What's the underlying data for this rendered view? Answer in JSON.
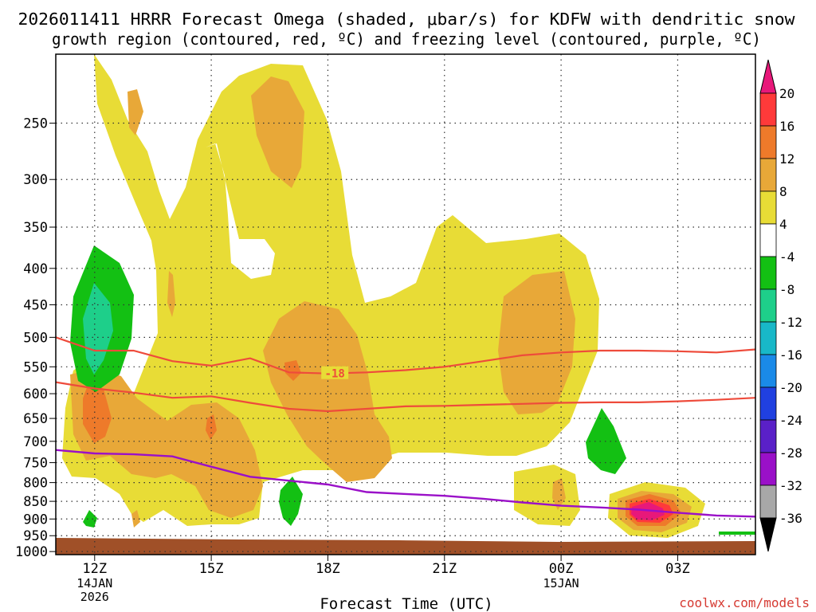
{
  "chart_data": {
    "type": "heatmap",
    "title_line1": "2026011411 HRRR Forecast Omega (shaded, μbar/s) for KDFW with dendritic snow",
    "title_line2": "growth region (contoured, red, ºC) and freezing level (contoured, purple, ºC)",
    "xlabel": "Forecast Time (UTC)",
    "credit": "coolwx.com/models",
    "x_range_hours": [
      -1.0,
      17.0
    ],
    "y_range_hpa": [
      200,
      1010
    ],
    "x_ticks": [
      {
        "hour": 0,
        "label": "12Z",
        "sub1": "14JAN",
        "sub2": "2026"
      },
      {
        "hour": 3,
        "label": "15Z",
        "sub1": "",
        "sub2": ""
      },
      {
        "hour": 6,
        "label": "18Z",
        "sub1": "",
        "sub2": ""
      },
      {
        "hour": 9,
        "label": "21Z",
        "sub1": "",
        "sub2": ""
      },
      {
        "hour": 12,
        "label": "00Z",
        "sub1": "15JAN",
        "sub2": ""
      },
      {
        "hour": 15,
        "label": "03Z",
        "sub1": "",
        "sub2": ""
      }
    ],
    "y_ticks": [
      250,
      300,
      350,
      400,
      450,
      500,
      550,
      600,
      650,
      700,
      750,
      800,
      850,
      900,
      950,
      1000
    ],
    "colorbar": {
      "levels": [
        "20",
        "16",
        "12",
        "8",
        "4",
        "-4",
        "-8",
        "-12",
        "-16",
        "-20",
        "-24",
        "-28",
        "-32",
        "-36"
      ],
      "colors": [
        "#ff3a3a",
        "#ee7a2a",
        "#e8a838",
        "#e8dc36",
        "#ffffff",
        "#13c013",
        "#1ecf8a",
        "#18b8c8",
        "#1a8ae8",
        "#2040e0",
        "#5a20c8",
        "#9a10c8",
        "#a8a8a8"
      ],
      "top_color": "#e8187a",
      "bottom_color": "#000000"
    },
    "shading_colors": {
      "up_4_8": "#e8dc36",
      "up_8_12": "#e8a838",
      "up_12_16": "#ee7a2a",
      "up_16_20": "#ff3a3a",
      "up_gt_20": "#e8187a",
      "down_4_8": "#13c013",
      "down_8_12": "#1ecf8a"
    },
    "red_contour_label": "-18",
    "dendritic_contours": [
      {
        "name": "upper",
        "color": "#ee4b3b",
        "points": [
          [
            -1.0,
            500
          ],
          [
            0.0,
            522
          ],
          [
            1.0,
            522
          ],
          [
            2.0,
            540
          ],
          [
            3.0,
            548
          ],
          [
            4.0,
            535
          ],
          [
            5.0,
            560
          ],
          [
            6.0,
            562
          ],
          [
            7.0,
            560
          ],
          [
            8.0,
            556
          ],
          [
            9.0,
            550
          ],
          [
            10.0,
            540
          ],
          [
            11.0,
            530
          ],
          [
            12.0,
            525
          ],
          [
            13.0,
            522
          ],
          [
            14.0,
            522
          ],
          [
            15.0,
            523
          ],
          [
            16.0,
            525
          ],
          [
            17.0,
            520
          ]
        ]
      },
      {
        "name": "lower",
        "color": "#ee4b3b",
        "points": [
          [
            -1.0,
            578
          ],
          [
            0.0,
            590
          ],
          [
            1.0,
            598
          ],
          [
            2.0,
            608
          ],
          [
            3.0,
            605
          ],
          [
            4.0,
            618
          ],
          [
            5.0,
            630
          ],
          [
            6.0,
            635
          ],
          [
            7.0,
            630
          ],
          [
            8.0,
            625
          ],
          [
            9.0,
            624
          ],
          [
            10.0,
            622
          ],
          [
            11.0,
            620
          ],
          [
            12.0,
            618
          ],
          [
            13.0,
            617
          ],
          [
            14.0,
            617
          ],
          [
            15.0,
            615
          ],
          [
            16.0,
            612
          ],
          [
            17.0,
            608
          ]
        ]
      }
    ],
    "freezing_level": {
      "color": "#9a10c8",
      "points": [
        [
          -1.0,
          720
        ],
        [
          0.0,
          728
        ],
        [
          1.0,
          730
        ],
        [
          2.0,
          735
        ],
        [
          3.0,
          760
        ],
        [
          4.0,
          785
        ],
        [
          5.0,
          795
        ],
        [
          6.0,
          805
        ],
        [
          7.0,
          825
        ],
        [
          8.0,
          830
        ],
        [
          9.0,
          835
        ],
        [
          10.0,
          843
        ],
        [
          11.0,
          853
        ],
        [
          12.0,
          862
        ],
        [
          13.0,
          867
        ],
        [
          14.0,
          873
        ],
        [
          15.0,
          882
        ],
        [
          16.0,
          890
        ],
        [
          17.0,
          893
        ]
      ]
    }
  }
}
